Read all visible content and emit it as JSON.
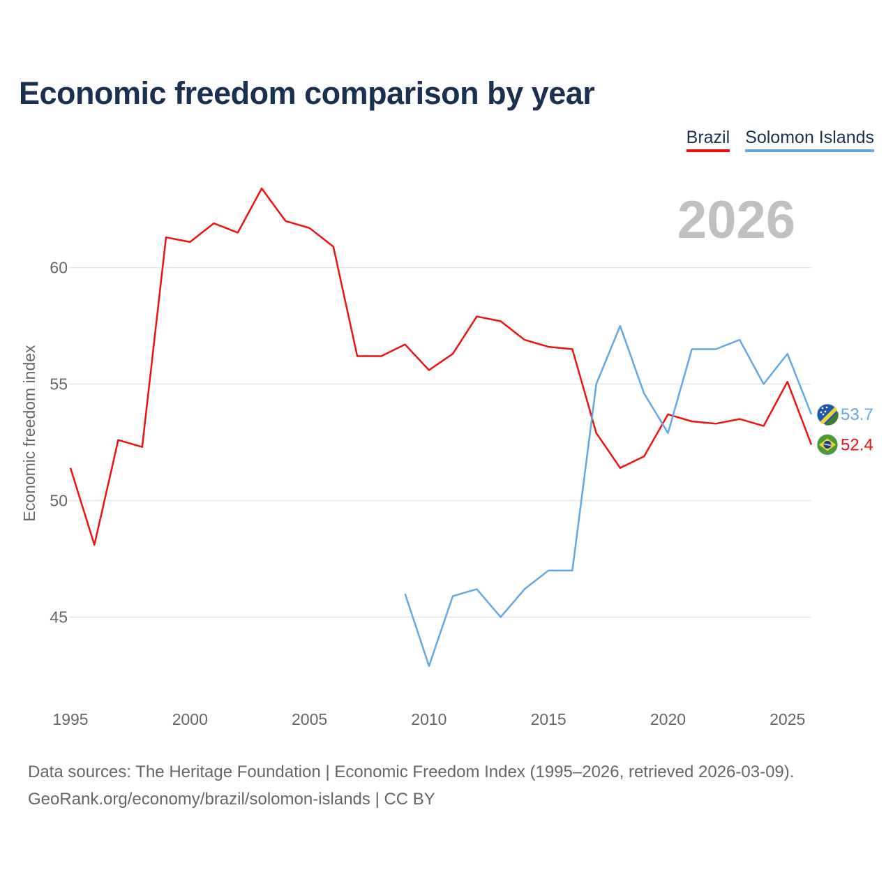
{
  "title": "Economic freedom comparison by year",
  "legend": [
    {
      "label": "Brazil",
      "color": "#ee1111"
    },
    {
      "label": "Solomon Islands",
      "color": "#62a8e5"
    }
  ],
  "year_overlay": "2026",
  "footer": {
    "line1": "Data sources: The Heritage Foundation | Economic Freedom Index (1995–2026, retrieved 2026-03-09).",
    "line2": "GeoRank.org/economy/brazil/solomon-islands | CC BY"
  },
  "chart_data": {
    "type": "line",
    "title": "Economic freedom comparison by year",
    "xlabel": "",
    "ylabel": "Economic freedom index",
    "xlim": [
      1995,
      2026
    ],
    "ylim": [
      41.3,
      64.3
    ],
    "xticks": [
      "1995",
      "2000",
      "2005",
      "2010",
      "2015",
      "2020",
      "2025"
    ],
    "yticks": [
      "45",
      "50",
      "55",
      "60"
    ],
    "grid": true,
    "legend_position": "top-right",
    "series": [
      {
        "name": "Brazil",
        "color": "#ee1111",
        "end_label": "52.4",
        "x": [
          1995,
          1996,
          1997,
          1998,
          1999,
          2000,
          2001,
          2002,
          2003,
          2004,
          2005,
          2006,
          2007,
          2008,
          2009,
          2010,
          2011,
          2012,
          2013,
          2014,
          2015,
          2016,
          2017,
          2018,
          2019,
          2020,
          2021,
          2022,
          2023,
          2024,
          2025,
          2026
        ],
        "values": [
          51.4,
          48.1,
          52.6,
          52.3,
          61.3,
          61.1,
          61.9,
          61.5,
          63.4,
          62.0,
          61.7,
          60.9,
          56.2,
          56.2,
          56.7,
          55.6,
          56.3,
          57.9,
          57.7,
          56.9,
          56.6,
          56.5,
          52.9,
          51.4,
          51.9,
          53.7,
          53.4,
          53.3,
          53.5,
          53.2,
          55.1,
          52.4
        ]
      },
      {
        "name": "Solomon Islands",
        "color": "#62a8e5",
        "end_label": "53.7",
        "x": [
          2009,
          2010,
          2011,
          2012,
          2013,
          2014,
          2015,
          2016,
          2017,
          2018,
          2019,
          2020,
          2021,
          2022,
          2023,
          2024,
          2025,
          2026
        ],
        "values": [
          46.0,
          42.9,
          45.9,
          46.2,
          45.0,
          46.2,
          47.0,
          47.0,
          55.0,
          57.5,
          54.6,
          52.9,
          56.5,
          56.5,
          56.9,
          55.0,
          56.3,
          53.7
        ]
      }
    ]
  }
}
